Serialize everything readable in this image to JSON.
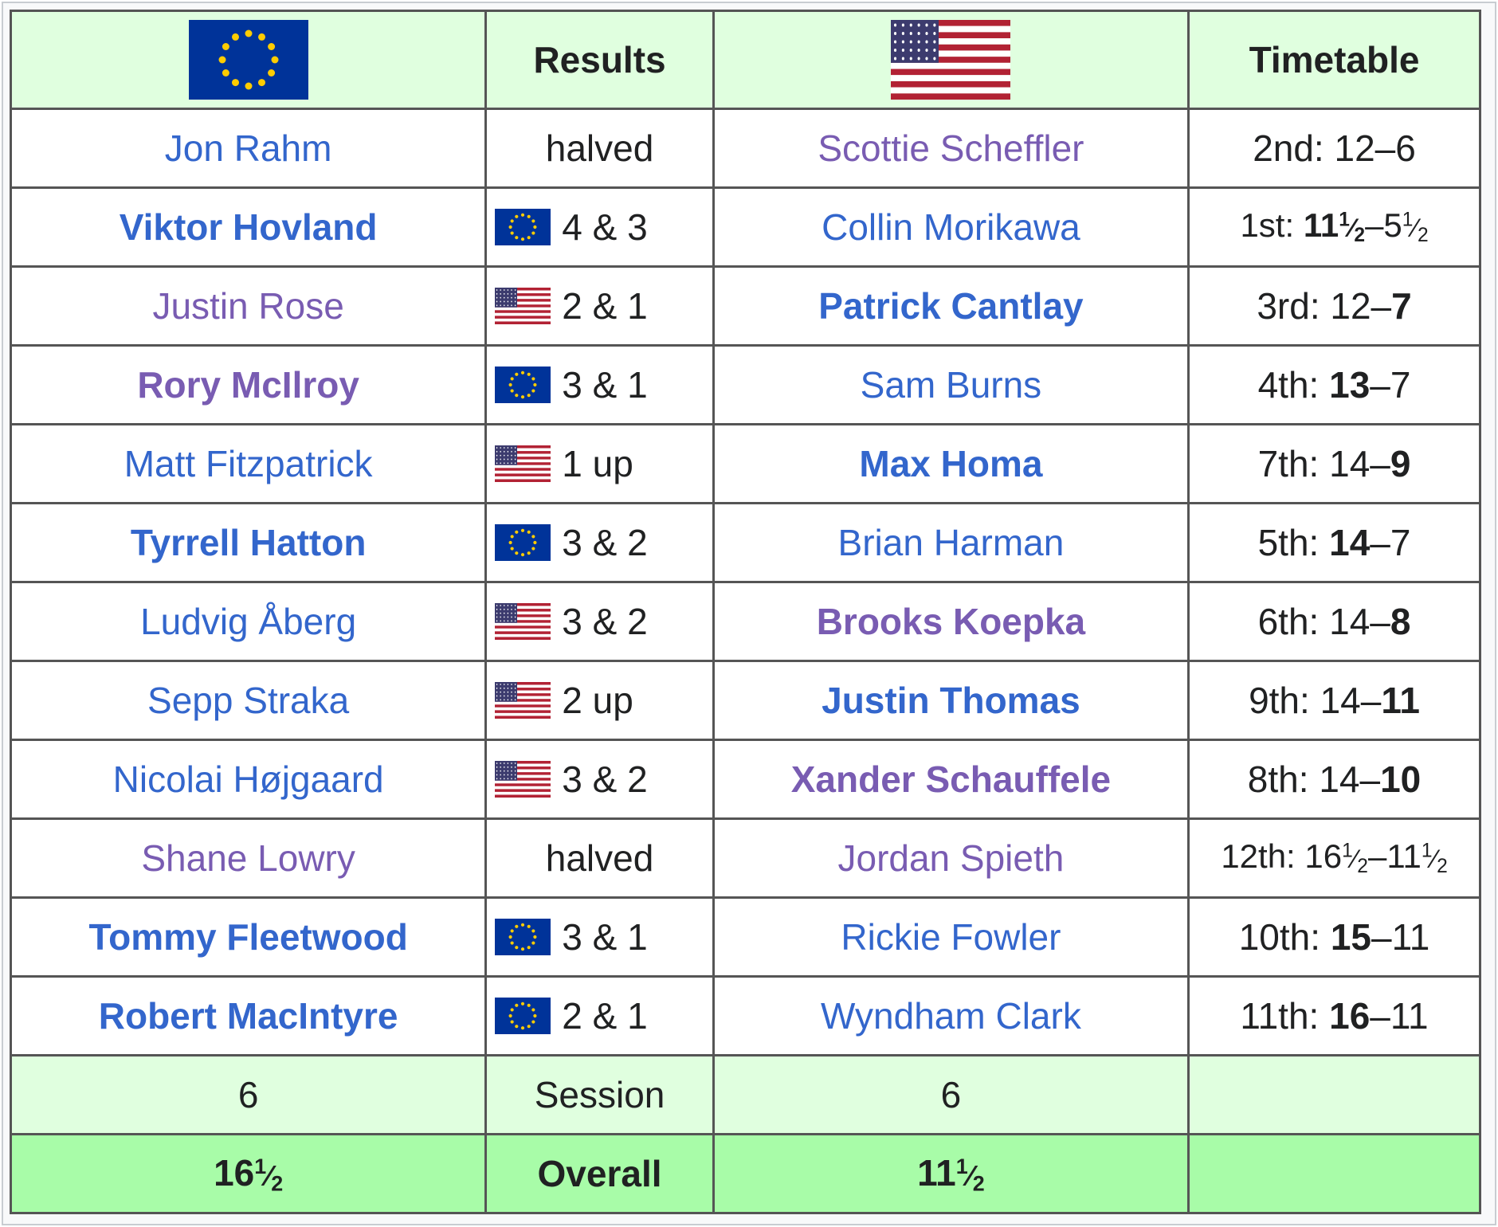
{
  "colors": {
    "header_bg": "#e0ffdf",
    "overall_bg": "#a8fca8",
    "link_blue": "#3366cc",
    "link_visited": "#795cb2",
    "eu_flag_blue": "#003399",
    "eu_star_gold": "#ffcc00",
    "us_red": "#b22234",
    "us_blue": "#3c3b6e"
  },
  "header": {
    "europe_flag": "eu-flag-icon",
    "results_label": "Results",
    "usa_flag": "us-flag-icon",
    "timetable_label": "Timetable"
  },
  "matches": [
    {
      "europe": "Jon Rahm",
      "europe_style": "blue",
      "europe_winner": false,
      "result_flag": "",
      "result": "halved",
      "usa": "Scottie Scheffler",
      "usa_style": "purple",
      "usa_winner": false,
      "timetable": {
        "order": "2nd: ",
        "eu": "12",
        "us": "6",
        "bold": ""
      }
    },
    {
      "europe": "Viktor Hovland",
      "europe_style": "blue",
      "europe_winner": true,
      "result_flag": "eu",
      "result": "4 & 3",
      "usa": "Collin Morikawa",
      "usa_style": "blue",
      "usa_winner": false,
      "timetable": {
        "order": "1st: ",
        "eu": "11½",
        "us": "5½",
        "bold": "eu"
      }
    },
    {
      "europe": "Justin Rose",
      "europe_style": "purple",
      "europe_winner": false,
      "result_flag": "us",
      "result": "2 & 1",
      "usa": "Patrick Cantlay",
      "usa_style": "blue",
      "usa_winner": true,
      "timetable": {
        "order": "3rd: ",
        "eu": "12",
        "us": "7",
        "bold": "us"
      }
    },
    {
      "europe": "Rory McIlroy",
      "europe_style": "purple",
      "europe_winner": true,
      "result_flag": "eu",
      "result": "3 & 1",
      "usa": "Sam Burns",
      "usa_style": "blue",
      "usa_winner": false,
      "timetable": {
        "order": "4th: ",
        "eu": "13",
        "us": "7",
        "bold": "eu"
      }
    },
    {
      "europe": "Matt Fitzpatrick",
      "europe_style": "blue",
      "europe_winner": false,
      "result_flag": "us",
      "result": "1 up",
      "usa": "Max Homa",
      "usa_style": "blue",
      "usa_winner": true,
      "timetable": {
        "order": "7th: ",
        "eu": "14",
        "us": "9",
        "bold": "us"
      }
    },
    {
      "europe": "Tyrrell Hatton",
      "europe_style": "blue",
      "europe_winner": true,
      "result_flag": "eu",
      "result": "3 & 2",
      "usa": "Brian Harman",
      "usa_style": "blue",
      "usa_winner": false,
      "timetable": {
        "order": "5th: ",
        "eu": "14",
        "us": "7",
        "bold": "eu"
      }
    },
    {
      "europe": "Ludvig Åberg",
      "europe_style": "blue",
      "europe_winner": false,
      "result_flag": "us",
      "result": "3 & 2",
      "usa": "Brooks Koepka",
      "usa_style": "purple",
      "usa_winner": true,
      "timetable": {
        "order": "6th: ",
        "eu": "14",
        "us": "8",
        "bold": "us"
      }
    },
    {
      "europe": "Sepp Straka",
      "europe_style": "blue",
      "europe_winner": false,
      "result_flag": "us",
      "result": "2 up",
      "usa": "Justin Thomas",
      "usa_style": "blue",
      "usa_winner": true,
      "timetable": {
        "order": "9th: ",
        "eu": "14",
        "us": "11",
        "bold": "us"
      }
    },
    {
      "europe": "Nicolai Højgaard",
      "europe_style": "blue",
      "europe_winner": false,
      "result_flag": "us",
      "result": "3 & 2",
      "usa": "Xander Schauffele",
      "usa_style": "purple",
      "usa_winner": true,
      "timetable": {
        "order": "8th: ",
        "eu": "14",
        "us": "10",
        "bold": "us"
      }
    },
    {
      "europe": "Shane Lowry",
      "europe_style": "purple",
      "europe_winner": false,
      "result_flag": "",
      "result": "halved",
      "usa": "Jordan Spieth",
      "usa_style": "purple",
      "usa_winner": false,
      "timetable": {
        "order": "12th: ",
        "eu": "16½",
        "us": "11½",
        "bold": ""
      }
    },
    {
      "europe": "Tommy Fleetwood",
      "europe_style": "blue",
      "europe_winner": true,
      "result_flag": "eu",
      "result": "3 & 1",
      "usa": "Rickie Fowler",
      "usa_style": "blue",
      "usa_winner": false,
      "timetable": {
        "order": "10th: ",
        "eu": "15",
        "us": "11",
        "bold": "eu"
      }
    },
    {
      "europe": "Robert MacIntyre",
      "europe_style": "blue",
      "europe_winner": true,
      "result_flag": "eu",
      "result": "2 & 1",
      "usa": "Wyndham Clark",
      "usa_style": "blue",
      "usa_winner": false,
      "timetable": {
        "order": "11th: ",
        "eu": "16",
        "us": "11",
        "bold": "eu"
      }
    }
  ],
  "session": {
    "europe": "6",
    "label": "Session",
    "usa": "6",
    "timetable": ""
  },
  "overall": {
    "europe": "16½",
    "label": "Overall",
    "usa": "11½",
    "timetable": ""
  }
}
